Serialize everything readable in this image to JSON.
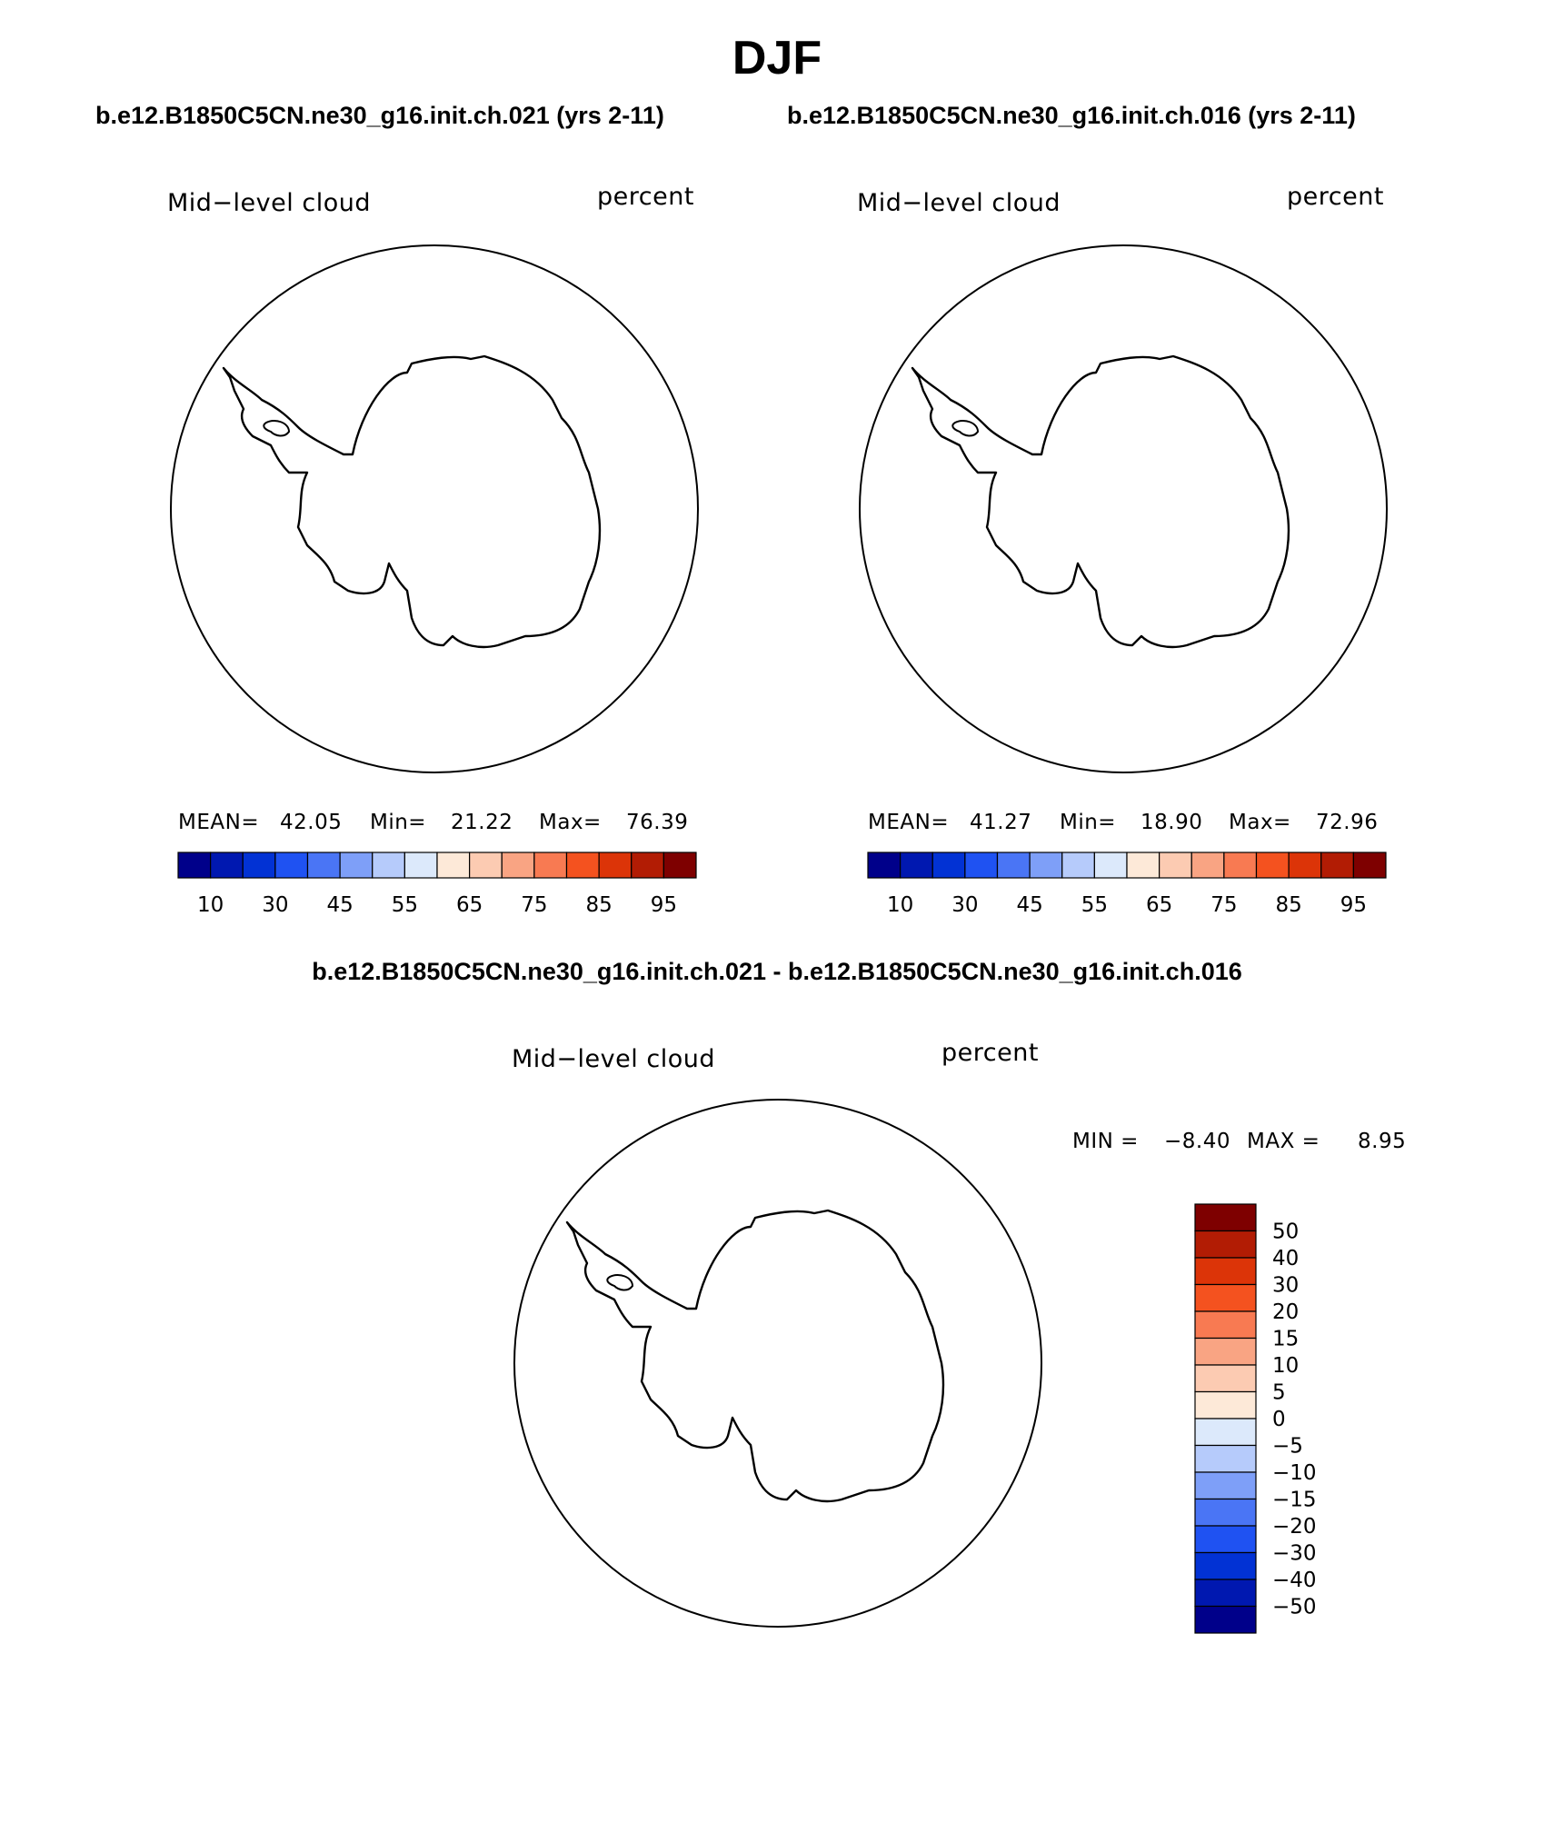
{
  "title": "DJF",
  "panels": [
    {
      "case": "b.e12.B1850C5CN.ne30_g16.init.ch.021 (yrs 2-11)",
      "variable": "Mid−level cloud",
      "units": "percent",
      "stats": {
        "mean_label": "MEAN=",
        "mean": "42.05",
        "min_label": "Min=",
        "min": "21.22",
        "max_label": "Max=",
        "max": "76.39"
      }
    },
    {
      "case": "b.e12.B1850C5CN.ne30_g16.init.ch.016 (yrs 2-11)",
      "variable": "Mid−level cloud",
      "units": "percent",
      "stats": {
        "mean_label": "MEAN=",
        "mean": "41.27",
        "min_label": "Min=",
        "min": "18.90",
        "max_label": "Max=",
        "max": "72.96"
      }
    }
  ],
  "diff": {
    "title": "b.e12.B1850C5CN.ne30_g16.init.ch.021 - b.e12.B1850C5CN.ne30_g16.init.ch.016",
    "variable": "Mid−level cloud",
    "units": "percent",
    "stats": {
      "min_label": "MIN =",
      "min": "−8.40",
      "max_label": "MAX =",
      "max": "8.95"
    }
  },
  "chart_data": [
    {
      "type": "heatmap",
      "projection": "polar stereographic, south pole",
      "variable": "Mid-level cloud",
      "units": "percent",
      "mean": 42.05,
      "min": 21.22,
      "max": 76.39,
      "colorbar": {
        "orientation": "horizontal",
        "levels": [
          5,
          10,
          20,
          30,
          40,
          45,
          50,
          55,
          60,
          65,
          70,
          75,
          80,
          85,
          90,
          95
        ],
        "tick_labels": [
          "10",
          "30",
          "45",
          "55",
          "65",
          "75",
          "85",
          "95"
        ],
        "tick_level_indices": [
          1,
          3,
          5,
          7,
          9,
          11,
          13,
          15
        ],
        "colors": [
          "#00008a",
          "#0018b0",
          "#0232d4",
          "#1f52f2",
          "#4a75f5",
          "#7e9ff8",
          "#b6cbfb",
          "#dce9fb",
          "#fde9d8",
          "#fccbb2",
          "#f9a483",
          "#f87a52",
          "#f4521f",
          "#dc3408",
          "#b21c04",
          "#7e0000"
        ]
      }
    },
    {
      "type": "heatmap",
      "projection": "polar stereographic, south pole",
      "variable": "Mid-level cloud",
      "units": "percent",
      "mean": 41.27,
      "min": 18.9,
      "max": 72.96,
      "colorbar": {
        "orientation": "horizontal",
        "levels": [
          5,
          10,
          20,
          30,
          40,
          45,
          50,
          55,
          60,
          65,
          70,
          75,
          80,
          85,
          90,
          95
        ],
        "tick_labels": [
          "10",
          "30",
          "45",
          "55",
          "65",
          "75",
          "85",
          "95"
        ],
        "tick_level_indices": [
          1,
          3,
          5,
          7,
          9,
          11,
          13,
          15
        ],
        "colors": [
          "#00008a",
          "#0018b0",
          "#0232d4",
          "#1f52f2",
          "#4a75f5",
          "#7e9ff8",
          "#b6cbfb",
          "#dce9fb",
          "#fde9d8",
          "#fccbb2",
          "#f9a483",
          "#f87a52",
          "#f4521f",
          "#dc3408",
          "#b21c04",
          "#7e0000"
        ]
      }
    },
    {
      "type": "heatmap",
      "projection": "polar stereographic, south pole",
      "variable": "Mid-level cloud",
      "units": "percent",
      "min": -8.4,
      "max": 8.95,
      "colorbar": {
        "orientation": "vertical",
        "labels_top_to_bottom": [
          "50",
          "40",
          "30",
          "20",
          "15",
          "10",
          "5",
          "0",
          "−5",
          "−10",
          "−15",
          "−20",
          "−30",
          "−40",
          "−50"
        ],
        "colors_top_to_bottom": [
          "#7e0000",
          "#b21c04",
          "#dc3408",
          "#f4521f",
          "#f87a52",
          "#f9a483",
          "#fccbb2",
          "#fde9d8",
          "#dce9fb",
          "#b6cbfb",
          "#7e9ff8",
          "#4a75f5",
          "#1f52f2",
          "#0232d4",
          "#0018b0",
          "#00008a"
        ]
      }
    }
  ]
}
